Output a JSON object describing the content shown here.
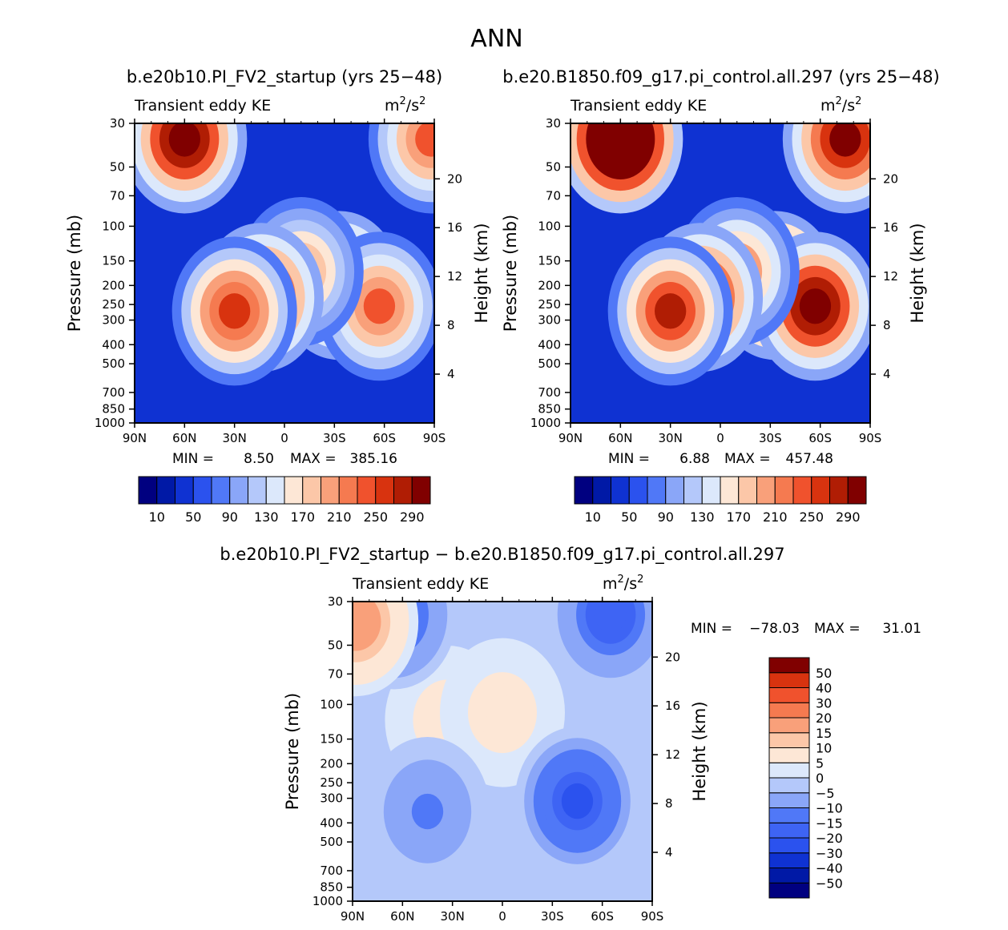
{
  "page_title": "ANN",
  "chart_data": [
    {
      "type": "contour",
      "case_label": "b.e20b10.PI_FV2_startup (yrs 25−48)",
      "field_title": "Transient eddy KE",
      "units_base": "m",
      "units_exp1": "2",
      "units_sep": "/s",
      "units_exp2": "2",
      "ylabel": "Pressure (mb)",
      "ylabel_right": "Height (km)",
      "x_ticks": [
        "90N",
        "60N",
        "30N",
        "0",
        "30S",
        "60S",
        "90S"
      ],
      "pressure_ticks": [
        "30",
        "50",
        "70",
        "100",
        "150",
        "200",
        "250",
        "300",
        "400",
        "500",
        "700",
        "850",
        "1000"
      ],
      "pressure_values": [
        30,
        50,
        70,
        100,
        150,
        200,
        250,
        300,
        400,
        500,
        700,
        850,
        1000
      ],
      "height_ticks": [
        "20",
        "16",
        "12",
        "8",
        "4"
      ],
      "height_values": [
        20,
        16,
        12,
        8,
        4
      ],
      "stats": {
        "min_label": "MIN =",
        "min_value": "8.50",
        "max_label": "MAX =",
        "max_value": "385.16"
      },
      "colorbar": {
        "orientation": "horizontal",
        "colors": [
          "#000080",
          "#0019a6",
          "#0f32d2",
          "#2b52ee",
          "#5078f7",
          "#8aa6f8",
          "#b4c8fa",
          "#dce8fb",
          "#fde7d6",
          "#fcc7a8",
          "#f9a07a",
          "#f57a50",
          "#f0522d",
          "#d8330f",
          "#b01d04",
          "#800000"
        ],
        "labels": [
          "10",
          "50",
          "90",
          "130",
          "170",
          "210",
          "250",
          "290"
        ]
      },
      "blobs": [
        {
          "lat": -33,
          "p": 200,
          "value": 340
        },
        {
          "lat": -57,
          "p": 255,
          "value": 250
        },
        {
          "lat": -10,
          "p": 170,
          "value": 210
        },
        {
          "lat": 14,
          "p": 230,
          "value": 300
        },
        {
          "lat": 30,
          "p": 270,
          "value": 270
        },
        {
          "lat": 60,
          "p": 36,
          "value": 330
        },
        {
          "lat": -88,
          "p": 36,
          "value": 250
        }
      ]
    },
    {
      "type": "contour",
      "case_label": "b.e20.B1850.f09_g17.pi_control.all.297 (yrs 25−48)",
      "field_title": "Transient eddy KE",
      "units_base": "m",
      "units_exp1": "2",
      "units_sep": "/s",
      "units_exp2": "2",
      "ylabel": "Pressure (mb)",
      "ylabel_right": "Height (km)",
      "x_ticks": [
        "90N",
        "60N",
        "30N",
        "0",
        "30S",
        "60S",
        "90S"
      ],
      "pressure_ticks": [
        "30",
        "50",
        "70",
        "100",
        "150",
        "200",
        "250",
        "300",
        "400",
        "500",
        "700",
        "850",
        "1000"
      ],
      "pressure_values": [
        30,
        50,
        70,
        100,
        150,
        200,
        250,
        300,
        400,
        500,
        700,
        850,
        1000
      ],
      "height_ticks": [
        "20",
        "16",
        "12",
        "8",
        "4"
      ],
      "height_values": [
        20,
        16,
        12,
        8,
        4
      ],
      "stats": {
        "min_label": "MIN =",
        "min_value": "6.88",
        "max_label": "MAX =",
        "max_value": "457.48"
      },
      "colorbar": {
        "orientation": "horizontal",
        "colors": [
          "#000080",
          "#0019a6",
          "#0f32d2",
          "#2b52ee",
          "#5078f7",
          "#8aa6f8",
          "#b4c8fa",
          "#dce8fb",
          "#fde7d6",
          "#fcc7a8",
          "#f9a07a",
          "#f57a50",
          "#f0522d",
          "#d8330f",
          "#b01d04",
          "#800000"
        ],
        "labels": [
          "10",
          "50",
          "90",
          "130",
          "170",
          "210",
          "250",
          "290"
        ]
      },
      "blobs": [
        {
          "lat": -33,
          "p": 200,
          "value": 360
        },
        {
          "lat": -57,
          "p": 255,
          "value": 330
        },
        {
          "lat": -10,
          "p": 170,
          "value": 230
        },
        {
          "lat": 12,
          "p": 230,
          "value": 300
        },
        {
          "lat": 30,
          "p": 270,
          "value": 280
        },
        {
          "lat": 60,
          "p": 36,
          "value": 420
        },
        {
          "lat": -75,
          "p": 36,
          "value": 300
        }
      ]
    },
    {
      "type": "contour",
      "case_label": "b.e20b10.PI_FV2_startup − b.e20.B1850.f09_g17.pi_control.all.297",
      "field_title": "Transient eddy KE",
      "units_base": "m",
      "units_exp1": "2",
      "units_sep": "/s",
      "units_exp2": "2",
      "ylabel": "Pressure (mb)",
      "ylabel_right": "Height (km)",
      "x_ticks": [
        "90N",
        "60N",
        "30N",
        "0",
        "30S",
        "60S",
        "90S"
      ],
      "pressure_ticks": [
        "30",
        "50",
        "70",
        "100",
        "150",
        "200",
        "250",
        "300",
        "400",
        "500",
        "700",
        "850",
        "1000"
      ],
      "pressure_values": [
        30,
        50,
        70,
        100,
        150,
        200,
        250,
        300,
        400,
        500,
        700,
        850,
        1000
      ],
      "height_ticks": [
        "20",
        "16",
        "12",
        "8",
        "4"
      ],
      "height_values": [
        20,
        16,
        12,
        8,
        4
      ],
      "stats": {
        "min_label": "MIN =",
        "min_value": "−78.03",
        "max_label": "MAX =",
        "max_value": "31.01"
      },
      "colorbar": {
        "orientation": "vertical",
        "colors": [
          "#000080",
          "#0019a6",
          "#0f32d2",
          "#2b52ee",
          "#3e64f4",
          "#5078f7",
          "#8aa6f8",
          "#b4c8fa",
          "#dce8fb",
          "#fde7d6",
          "#fcc7a8",
          "#f9a07a",
          "#f57a50",
          "#f0522d",
          "#d8330f",
          "#800000"
        ],
        "labels": [
          "−50",
          "−40",
          "−30",
          "−20",
          "−15",
          "−10",
          "−5",
          "0",
          "5",
          "10",
          "15",
          "20",
          "30",
          "40",
          "50"
        ]
      },
      "blobs": [
        {
          "lat": 33,
          "p": 120,
          "value": 14
        },
        {
          "lat": 0,
          "p": 110,
          "value": 12
        },
        {
          "lat": -45,
          "p": 310,
          "value": -32
        },
        {
          "lat": -65,
          "p": 35,
          "value": -28
        },
        {
          "lat": 65,
          "p": 35,
          "value": -24
        },
        {
          "lat": 45,
          "p": 350,
          "value": -18
        },
        {
          "lat": 88,
          "p": 38,
          "value": 28
        }
      ]
    }
  ]
}
